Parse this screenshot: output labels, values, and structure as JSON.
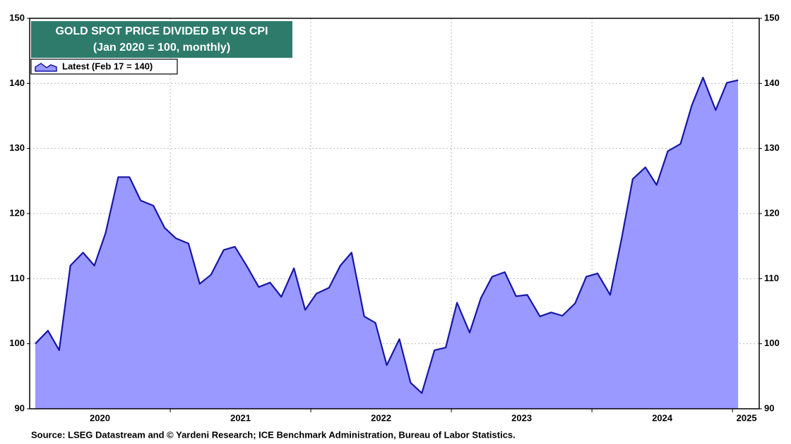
{
  "chart_data": {
    "type": "area",
    "title": "GOLD SPOT PRICE DIVIDED BY US CPI",
    "subtitle": "(Jan 2020 = 100, monthly)",
    "legend_label": "Latest (Feb 17 = 140)",
    "source": "Source: LSEG Datastream and © Yardeni Research; ICE Benchmark Administration, Bureau of Labor Statistics.",
    "fill_color": "#9999ff",
    "line_color": "#1616a6",
    "title_color": "#2e7b6c",
    "grid": true,
    "xlim": [
      2020,
      2025.19
    ],
    "ylim": [
      90,
      150
    ],
    "yticks": [
      90,
      100,
      110,
      120,
      130,
      140,
      150
    ],
    "xticks": [
      {
        "value": 2020.5,
        "label": "2020"
      },
      {
        "value": 2021.5,
        "label": "2021"
      },
      {
        "value": 2022.5,
        "label": "2022"
      },
      {
        "value": 2023.5,
        "label": "2023"
      },
      {
        "value": 2024.5,
        "label": "2024"
      },
      {
        "value": 2025.1,
        "label": "2025"
      }
    ],
    "xgrid": [
      2021,
      2022,
      2023,
      2024,
      2025
    ],
    "x": [
      2020.04,
      2020.13,
      2020.21,
      2020.29,
      2020.38,
      2020.46,
      2020.54,
      2020.63,
      2020.71,
      2020.79,
      2020.88,
      2020.96,
      2021.04,
      2021.13,
      2021.21,
      2021.29,
      2021.38,
      2021.46,
      2021.54,
      2021.63,
      2021.71,
      2021.79,
      2021.88,
      2021.96,
      2022.04,
      2022.13,
      2022.21,
      2022.29,
      2022.38,
      2022.46,
      2022.54,
      2022.63,
      2022.71,
      2022.79,
      2022.88,
      2022.96,
      2023.04,
      2023.13,
      2023.21,
      2023.29,
      2023.38,
      2023.46,
      2023.54,
      2023.63,
      2023.71,
      2023.79,
      2023.88,
      2023.96,
      2024.04,
      2024.13,
      2024.21,
      2024.29,
      2024.38,
      2024.46,
      2024.54,
      2024.63,
      2024.71,
      2024.79,
      2024.88,
      2024.96,
      2025.04
    ],
    "values": [
      100,
      102,
      99,
      112,
      114,
      112,
      117,
      125.6,
      125.6,
      122,
      121.2,
      117.8,
      116.2,
      115.4,
      109.2,
      110.6,
      114.4,
      114.9,
      112.1,
      108.7,
      109.4,
      107.2,
      111.6,
      105.2,
      107.7,
      108.6,
      112,
      114,
      104.2,
      103.2,
      96.7,
      100.7,
      94,
      92.4,
      99,
      99.4,
      106.3,
      101.7,
      107,
      110.3,
      111,
      107.3,
      107.5,
      104.2,
      104.8,
      104.3,
      106.2,
      110.3,
      110.8,
      107.5,
      116,
      125.3,
      127.1,
      124.4,
      129.6,
      130.7,
      136.6,
      140.9,
      135.9,
      140.1,
      140.5
    ]
  }
}
